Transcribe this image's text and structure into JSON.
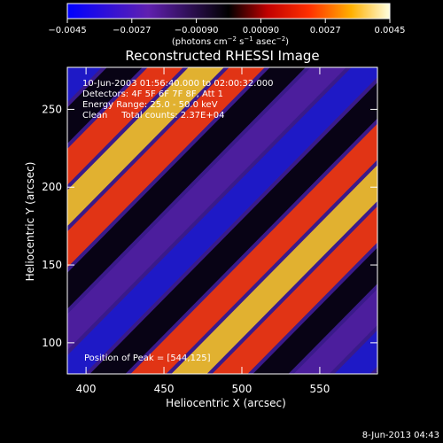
{
  "chart_data": {
    "type": "heatmap",
    "title": "Reconstructed RHESSI Image",
    "xlabel": "Heliocentric X (arcsec)",
    "ylabel": "Heliocentric Y (arcsec)",
    "xlim": [
      388,
      587
    ],
    "ylim": [
      80,
      277
    ],
    "x_ticks": [
      "400",
      "450",
      "500",
      "550"
    ],
    "x_tick_values": [
      400,
      450,
      500,
      550
    ],
    "y_ticks": [
      "100",
      "150",
      "200",
      "250"
    ],
    "y_tick_values": [
      100,
      150,
      200,
      250
    ],
    "colorbar": {
      "ticks": [
        "−0.0045",
        "−0.0027",
        "−0.00090",
        "0.00090",
        "0.0027",
        "0.0045"
      ],
      "tick_values": [
        -0.0045,
        -0.0027,
        -0.0009,
        0.0009,
        0.0027,
        0.0045
      ],
      "range": [
        -0.0045,
        0.0045
      ],
      "unit_parts": [
        "(photons cm",
        "−2",
        " s",
        "−1",
        " asec",
        "−2",
        ")"
      ]
    },
    "annotations": {
      "line1": "10-Jun-2003 01:56:40.000 to 02:00:32.000",
      "line2": "Detectors: 4F 5F 6F 7F 8F, Att 1",
      "line3": "Energy Range: 25.0 - 50.0 keV",
      "line4": "Clean     Total counts: 2.37E+04",
      "peak": "Position of Peak = [544,125]"
    },
    "peak_position": [
      544,
      125
    ],
    "pattern_note": "diagonal fringe pattern, brightest near lower-right",
    "colors": {
      "background": "#000000",
      "text": "#ffffff"
    }
  },
  "footer": {
    "date": "8-Jun-2013 04:43"
  }
}
